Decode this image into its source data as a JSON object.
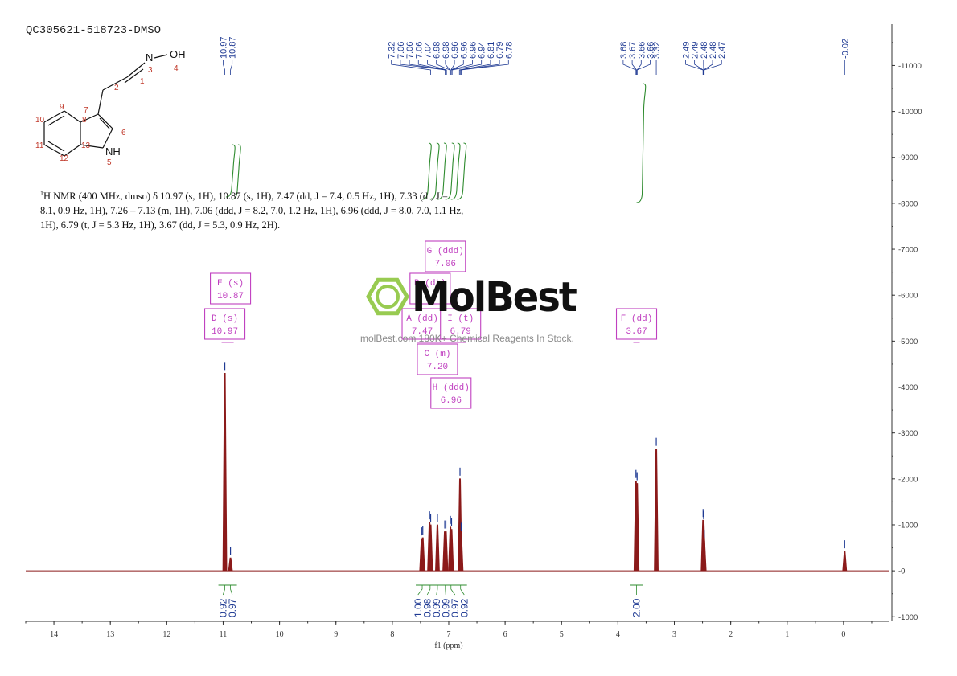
{
  "sample_id": "QC305621-518723-DMSO",
  "nmr_description": {
    "line1_prefix": "1",
    "line1": "H NMR (400 MHz, dmso) δ 10.97 (s, 1H), 10.87 (s, 1H), 7.47 (dd, J = 7.4, 0.5 Hz, 1H), 7.33 (dt, J =",
    "line2": "8.1, 0.9 Hz, 1H), 7.26 – 7.13 (m, 1H), 7.06 (ddd, J = 8.2, 7.0, 1.2 Hz, 1H), 6.96 (ddd, J = 8.0, 7.0, 1.1 Hz,",
    "line3": "1H), 6.79 (t, J = 5.3 Hz, 1H), 3.67 (dd, J = 5.3, 0.9 Hz, 2H)."
  },
  "watermark": {
    "brand": "MolBest",
    "tagline": "molBest.com 180K+ Chemical Reagents In Stock.",
    "color": "#8dc63f"
  },
  "structure": {
    "atoms": [
      "N",
      "OH",
      "NH"
    ],
    "numbers": [
      "1",
      "2",
      "3",
      "4",
      "5",
      "6",
      "7",
      "8",
      "9",
      "10",
      "11",
      "12",
      "13"
    ]
  },
  "chart_data": {
    "type": "line",
    "title": "",
    "xlabel": "f1 (ppm)",
    "ylabel": "",
    "xlim": [
      14.5,
      -0.8
    ],
    "ylim": [
      -1100,
      11900
    ],
    "x_ticks": [
      "14",
      "13",
      "12",
      "11",
      "10",
      "9",
      "8",
      "7",
      "6",
      "5",
      "4",
      "3",
      "2",
      "1",
      "0"
    ],
    "y_ticks": [
      "11000",
      "10000",
      "9000",
      "8000",
      "7000",
      "6000",
      "5000",
      "4000",
      "3000",
      "2000",
      "1000",
      "0",
      "-1000"
    ],
    "peaks": [
      {
        "ppm": 10.97,
        "height": 4300
      },
      {
        "ppm": 10.87,
        "height": 280
      },
      {
        "ppm": 7.48,
        "height": 700
      },
      {
        "ppm": 7.46,
        "height": 720
      },
      {
        "ppm": 7.34,
        "height": 1050
      },
      {
        "ppm": 7.32,
        "height": 1000
      },
      {
        "ppm": 7.2,
        "height": 1000
      },
      {
        "ppm": 7.07,
        "height": 850
      },
      {
        "ppm": 7.05,
        "height": 850
      },
      {
        "ppm": 6.97,
        "height": 950
      },
      {
        "ppm": 6.95,
        "height": 900
      },
      {
        "ppm": 6.8,
        "height": 2000
      },
      {
        "ppm": 6.78,
        "height": 800
      },
      {
        "ppm": 3.68,
        "height": 1950
      },
      {
        "ppm": 3.66,
        "height": 1900
      },
      {
        "ppm": 3.32,
        "height": 2650
      },
      {
        "ppm": 2.49,
        "height": 1100
      },
      {
        "ppm": 2.48,
        "height": 1050
      },
      {
        "ppm": 2.47,
        "height": 650
      },
      {
        "ppm": -0.02,
        "height": 420
      }
    ],
    "top_labels": [
      {
        "group": [
          10.97,
          10.87
        ],
        "labels": [
          "10.97",
          "10.87"
        ]
      },
      {
        "group": [
          7.32,
          7.06,
          7.06,
          7.06,
          7.04,
          6.98,
          6.98,
          6.96,
          6.96,
          6.96,
          6.94,
          6.81,
          6.79,
          6.78
        ],
        "labels": [
          "7.32",
          "7.06",
          "7.06",
          "7.06",
          "7.04",
          "6.98",
          "6.98",
          "6.96",
          "6.96",
          "6.96",
          "6.94",
          "6.81",
          "6.79",
          "6.78"
        ]
      },
      {
        "group": [
          3.68,
          3.67,
          3.66,
          3.66
        ],
        "labels": [
          "3.68",
          "3.67",
          "3.66",
          "3.66"
        ]
      },
      {
        "group": [
          3.32
        ],
        "labels": [
          "3.32"
        ]
      },
      {
        "group": [
          2.49,
          2.49,
          2.48,
          2.48,
          2.47
        ],
        "labels": [
          "2.49",
          "2.49",
          "2.48",
          "2.48",
          "2.47"
        ]
      },
      {
        "group": [
          -0.02
        ],
        "labels": [
          "-0.02"
        ]
      }
    ],
    "multiplet_boxes": [
      {
        "letter": "G",
        "mult": "ddd",
        "shift": "7.06",
        "ppm": 7.06,
        "row": 0
      },
      {
        "letter": "E",
        "mult": "s",
        "shift": "10.87",
        "ppm": 10.87,
        "row": 1
      },
      {
        "letter": "B",
        "mult": "dt",
        "shift": "",
        "ppm": 7.33,
        "row": 1
      },
      {
        "letter": "D",
        "mult": "s",
        "shift": "10.97",
        "ppm": 10.97,
        "row": 2
      },
      {
        "letter": "A",
        "mult": "dd",
        "shift": "7.47",
        "ppm": 7.47,
        "row": 2
      },
      {
        "letter": "I",
        "mult": "t",
        "shift": "6.79",
        "ppm": 6.79,
        "row": 2
      },
      {
        "letter": "F",
        "mult": "dd",
        "shift": "3.67",
        "ppm": 3.67,
        "row": 2
      },
      {
        "letter": "C",
        "mult": "m",
        "shift": "7.20",
        "ppm": 7.2,
        "row": 3
      },
      {
        "letter": "H",
        "mult": "ddd",
        "shift": "6.96",
        "ppm": 6.96,
        "row": 4
      }
    ],
    "integrals": [
      {
        "ppm": 10.97,
        "value": "0.92"
      },
      {
        "ppm": 10.87,
        "value": "0.97"
      },
      {
        "ppm": 7.47,
        "value": "1.00"
      },
      {
        "ppm": 7.33,
        "value": "0.98"
      },
      {
        "ppm": 7.2,
        "value": "0.99"
      },
      {
        "ppm": 7.06,
        "value": "0.99"
      },
      {
        "ppm": 6.96,
        "value": "0.97"
      },
      {
        "ppm": 6.79,
        "value": "0.92"
      },
      {
        "ppm": 3.67,
        "value": "2.00"
      }
    ],
    "colors": {
      "spectrum": "#8b1a1a",
      "peak_label": "#1f3a93",
      "integral": "#2e8b2e",
      "multiplet_box": "#c040c0",
      "axis": "#333333"
    }
  }
}
